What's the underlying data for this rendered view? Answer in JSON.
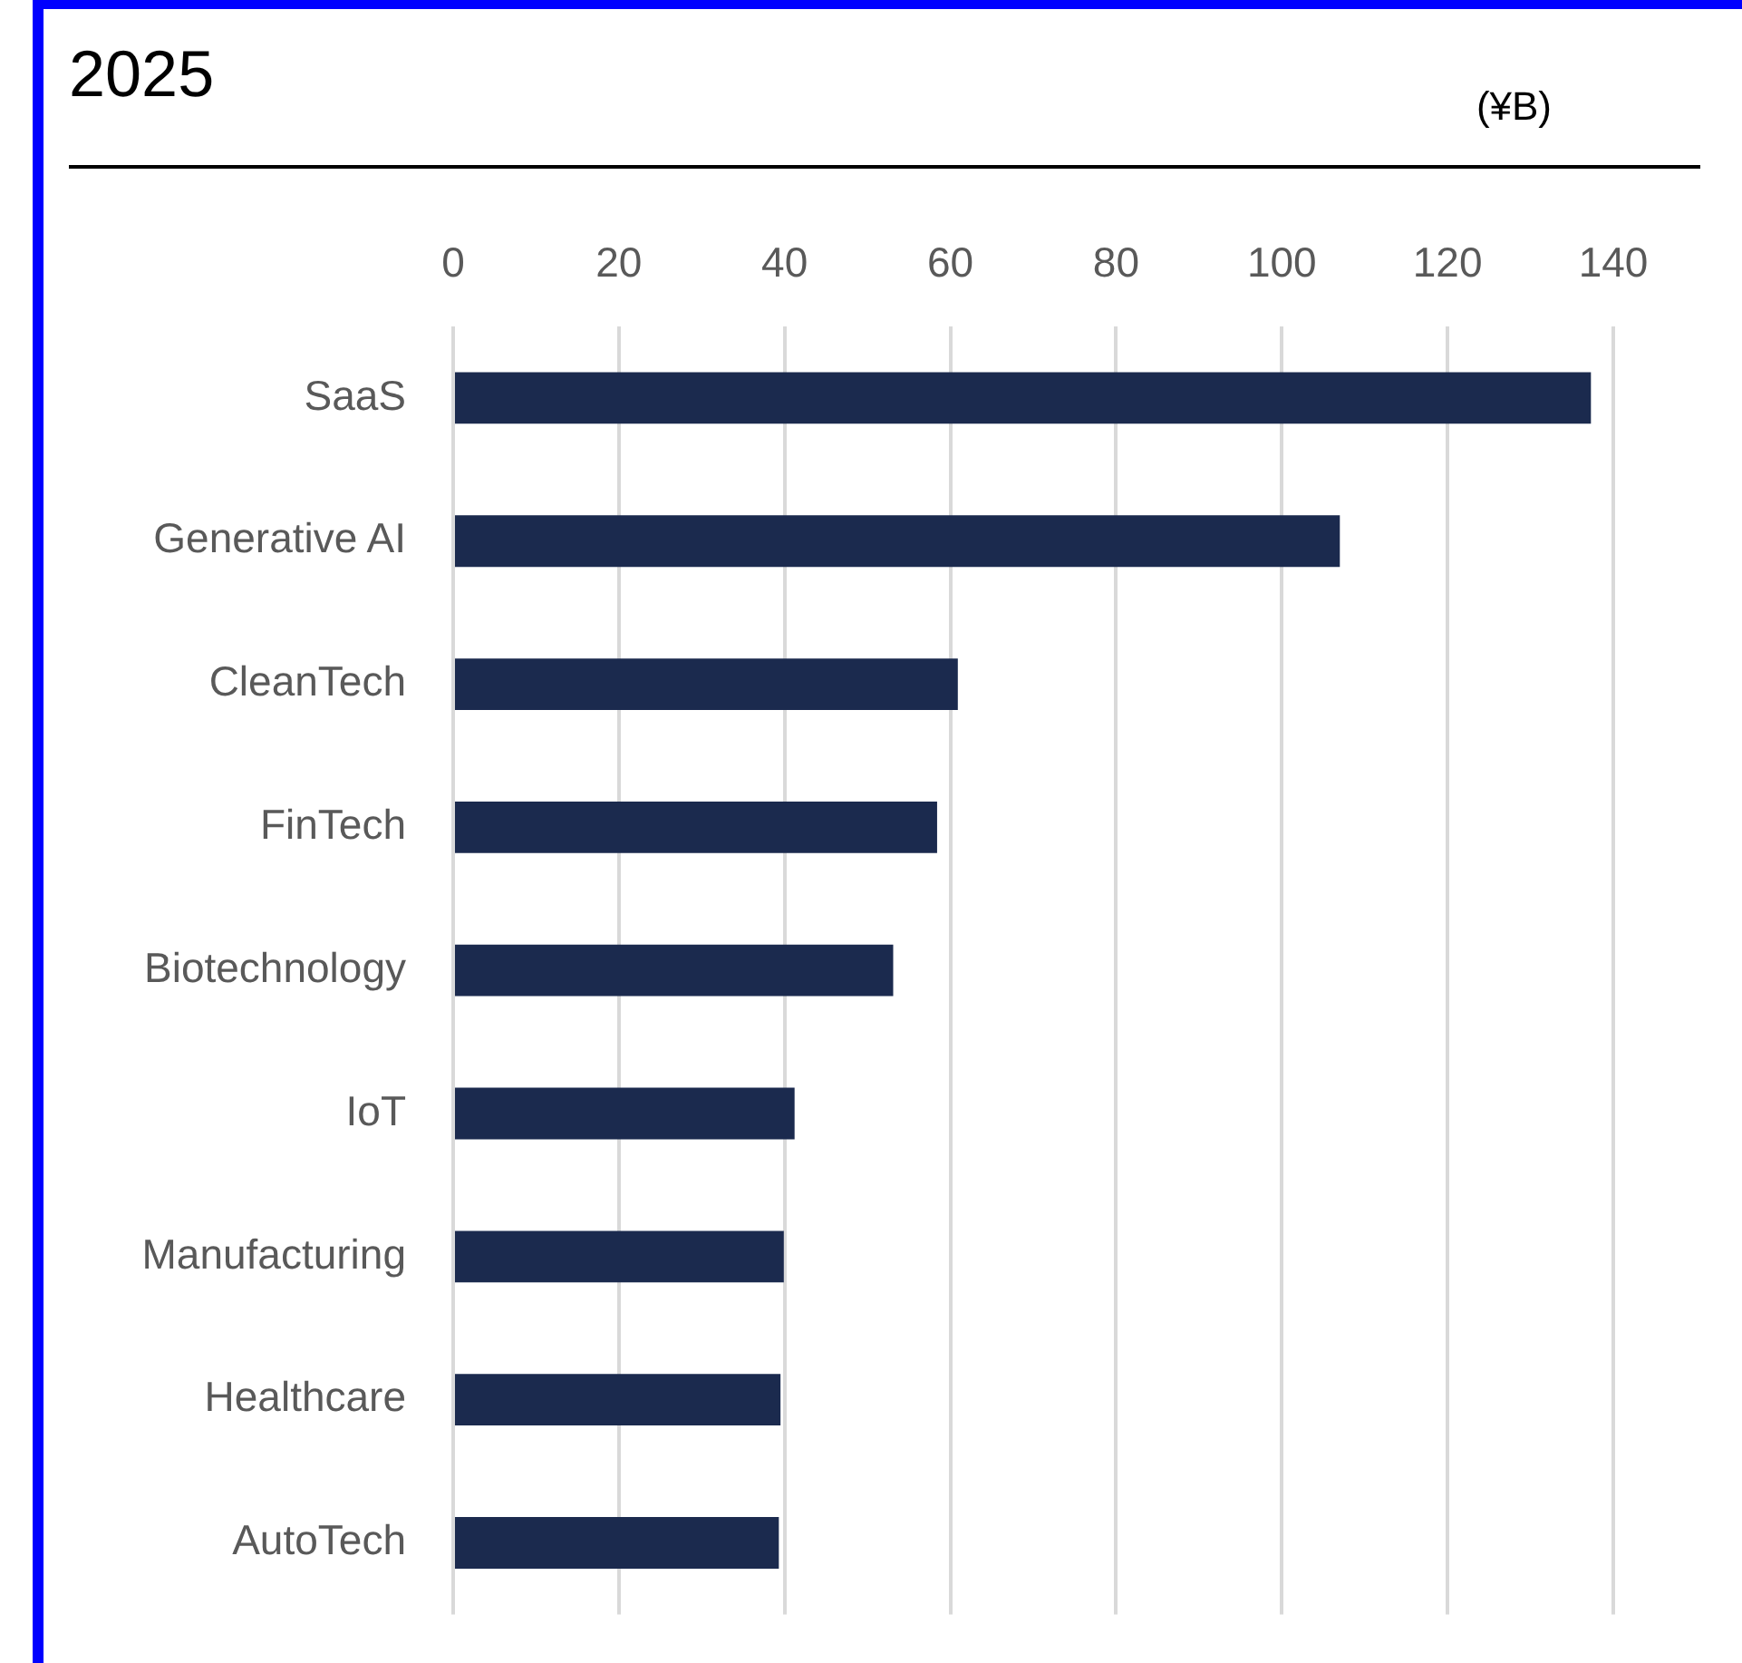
{
  "chart_data": {
    "type": "bar",
    "orientation": "horizontal",
    "title": "2025",
    "annotations": [
      "(¥B)"
    ],
    "categories": [
      "SaaS",
      "Generative AI",
      "CleanTech",
      "FinTech",
      "Biotechnology",
      "IoT",
      "Manufacturing",
      "Healthcare",
      "AutoTech"
    ],
    "values": [
      137.3,
      107.0,
      60.9,
      58.4,
      53.1,
      41.2,
      39.9,
      39.5,
      39.3
    ],
    "color": "#1b2a4e",
    "xlim": [
      0,
      140
    ],
    "xticks": [
      0,
      20,
      40,
      60,
      80,
      100,
      120,
      140
    ],
    "grid": "x"
  }
}
